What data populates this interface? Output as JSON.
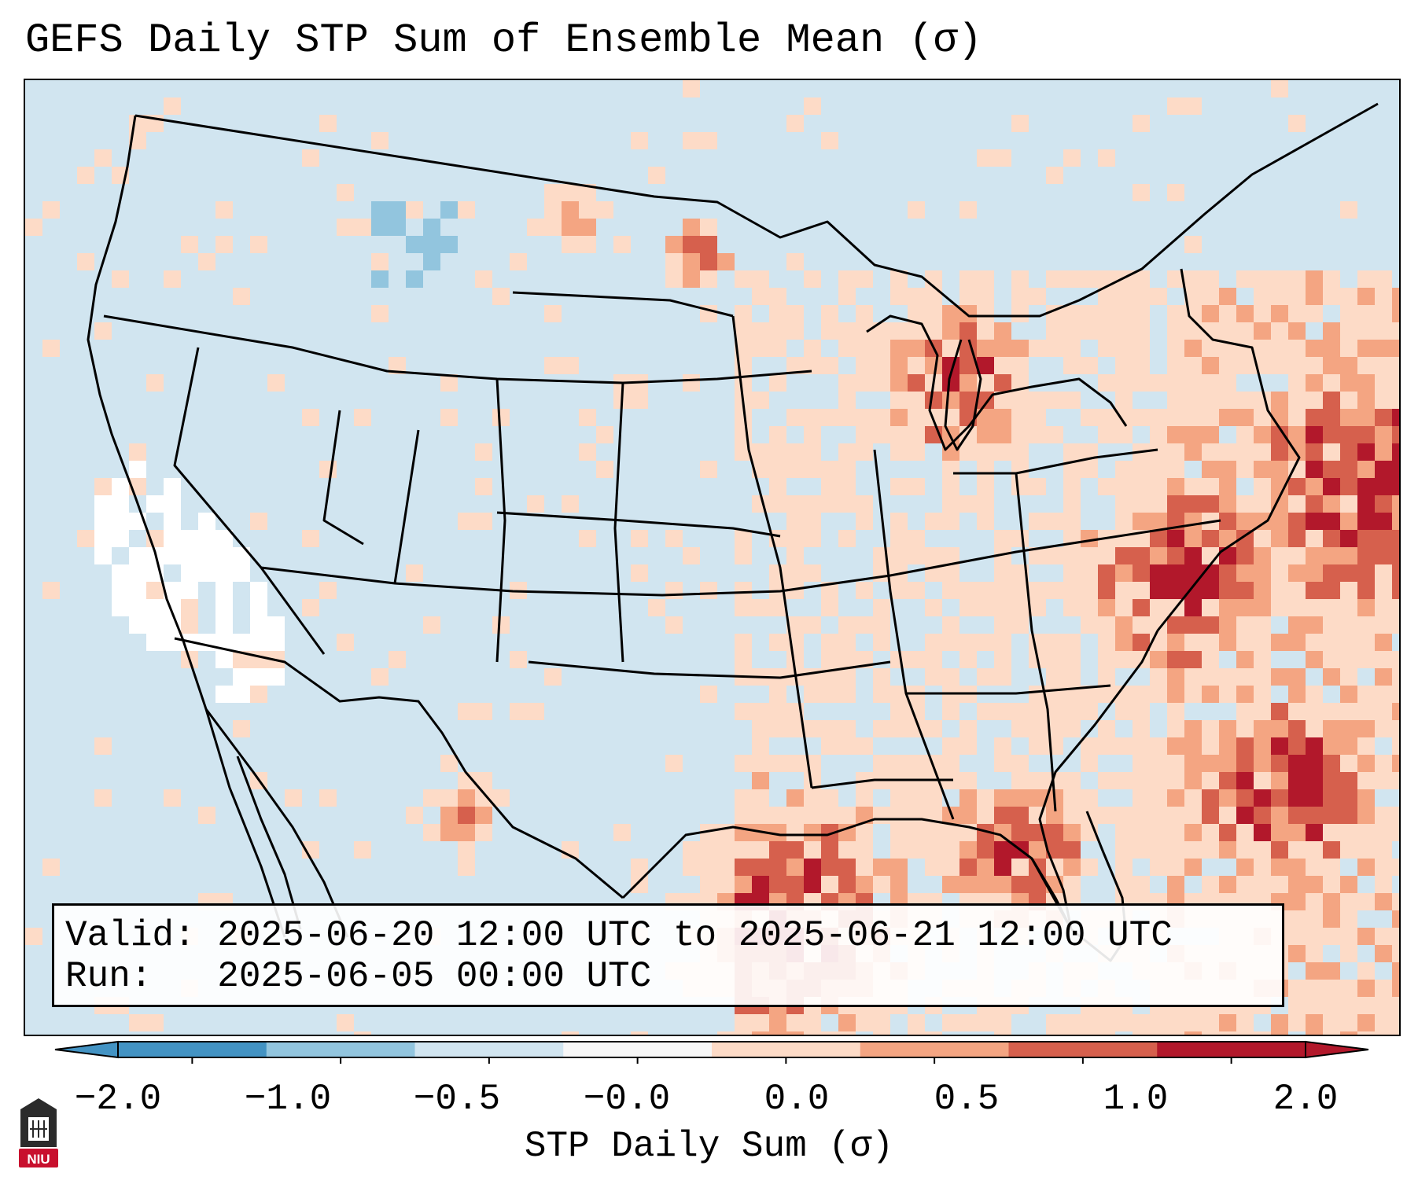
{
  "title": "GEFS Daily STP Sum of Ensemble Mean (σ)",
  "info": {
    "valid_label": "Valid:",
    "valid_value": "2025-06-20 12:00 UTC to 2025-06-21 12:00 UTC",
    "run_label": "Run:",
    "run_value": "2025-06-05 00:00 UTC"
  },
  "colorbar": {
    "label": "STP Daily Sum (σ)",
    "ticks": [
      "−2.0",
      "−1.0",
      "−0.5",
      "−0.0",
      "0.0",
      "0.5",
      "1.0",
      "2.0"
    ],
    "colors": [
      "#4393c3",
      "#92c5de",
      "#d1e5f0",
      "#f7f7f7",
      "#fddbc7",
      "#f4a582",
      "#d6604d",
      "#b2182b"
    ],
    "extend": "both"
  },
  "map_colors": {
    "ocean": "#d1e5f0",
    "neutral": "#ffffff",
    "light_positive": "#fddbc7",
    "medium_positive": "#f4a582",
    "strong_positive": "#d6604d",
    "extreme_positive": "#b2182b",
    "light_negative": "#92c5de",
    "borders": "#000000"
  },
  "logo": {
    "text": "NIU",
    "color": "#c8102e"
  }
}
